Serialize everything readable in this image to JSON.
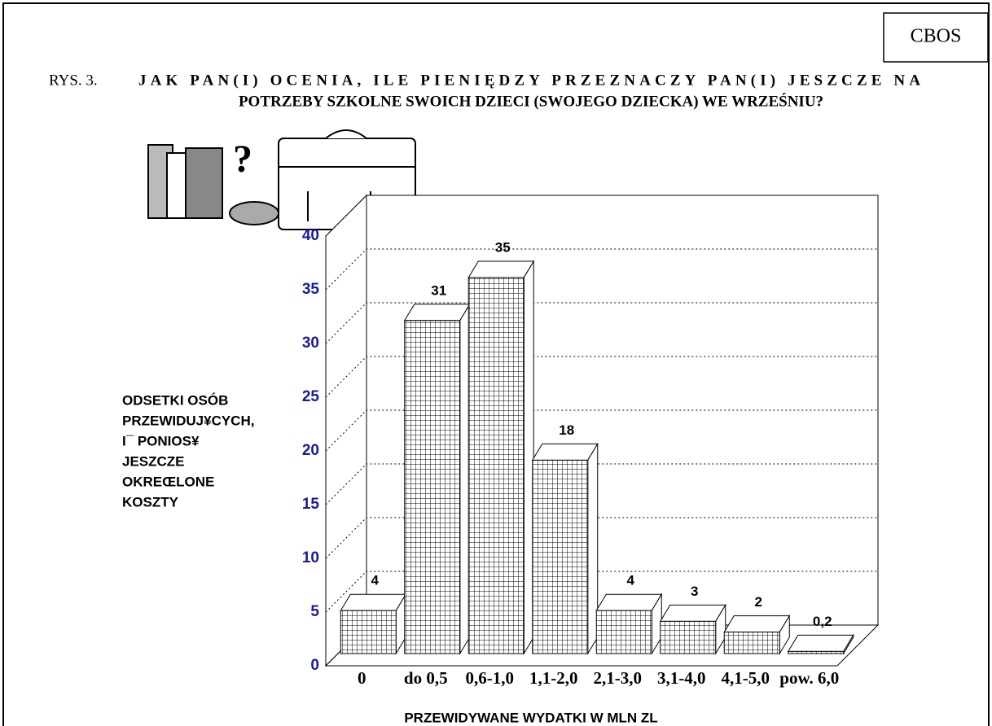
{
  "chart_data": {
    "type": "bar3d",
    "source": "CBOS",
    "figure_label": "RYS. 3.",
    "title_lines": [
      "JAK PAN(I) OCENIA, ILE PIENIĘDZY PRZEZNACZY PAN(I) JESZCZE NA",
      "POTRZEBY SZKOLNE SWOICH DZIECI (SWOJEGO DZIECKA) WE WRZEŚNIU?"
    ],
    "y_label_lines": [
      "ODSETKI OSÓB",
      "PRZEWIDUJ¥CYCH,",
      "I¯ PONIOS¥",
      "JESZCZE",
      "OKREŒLONE",
      "KOSZTY"
    ],
    "x_label": "PRZEWIDYWANE WYDATKI W MLN ZL",
    "categories": [
      "0",
      "do 0,5",
      "0,6-1,0",
      "1,1-2,0",
      "2,1-3,0",
      "3,1-4,0",
      "4,1-5,0",
      "pow. 6,0"
    ],
    "values": [
      4,
      31,
      35,
      18,
      4,
      3,
      2,
      0.2
    ],
    "value_labels": [
      "4",
      "31",
      "35",
      "18",
      "4",
      "3",
      "2",
      "0,2"
    ],
    "ylim": [
      0,
      40
    ],
    "yticks": [
      0,
      5,
      10,
      15,
      20,
      25,
      30,
      35,
      40
    ],
    "grid": true,
    "color": "#ffffff"
  }
}
